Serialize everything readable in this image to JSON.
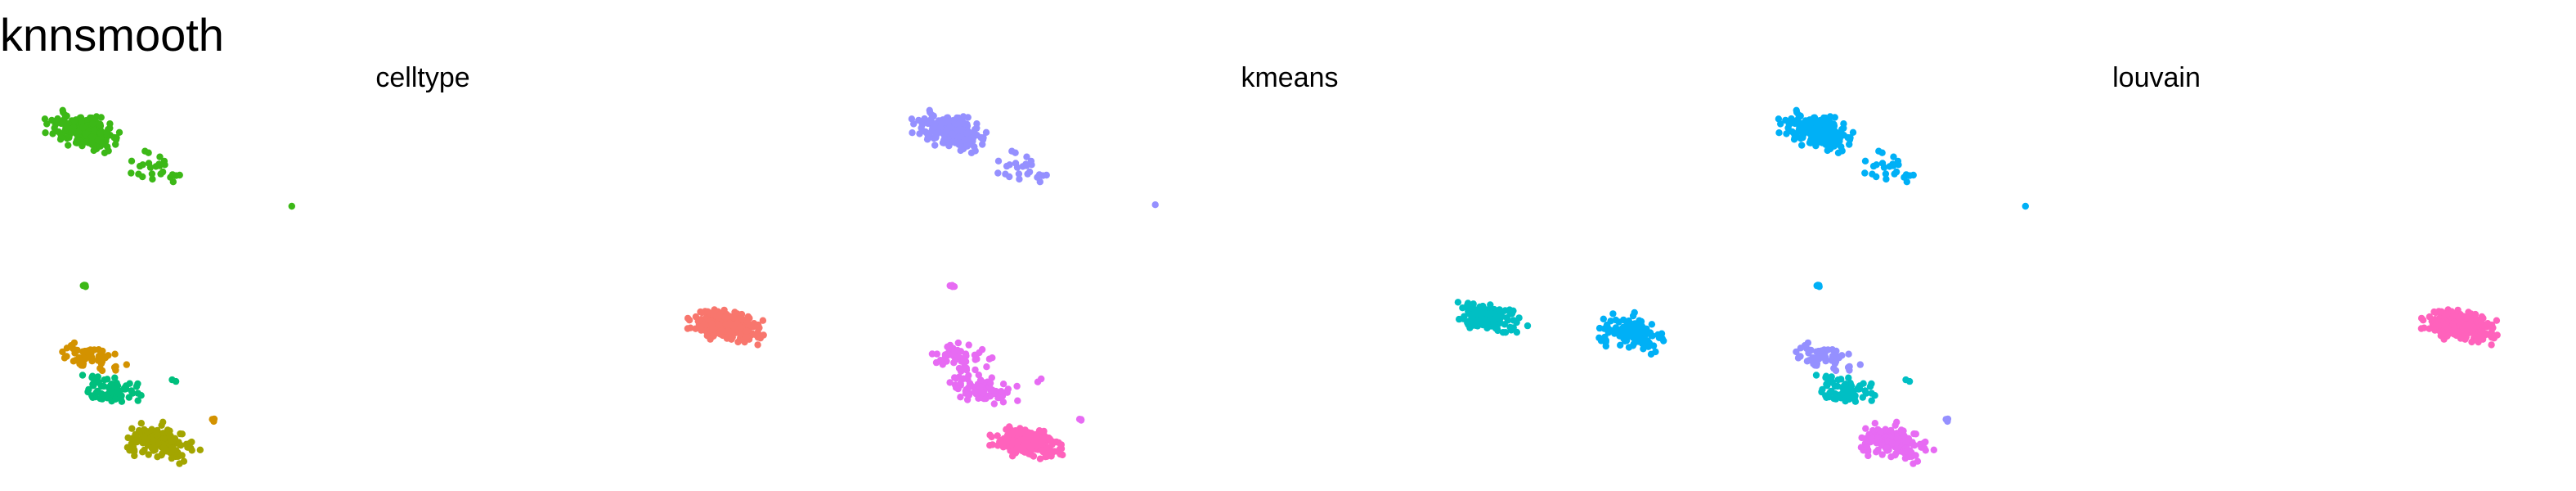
{
  "title": "knnsmooth",
  "chart_data": [
    {
      "type": "scatter",
      "title": "celltype",
      "xlabel": "",
      "ylabel": "",
      "axes": "none",
      "grid": false,
      "legend": "none",
      "clusters": [
        {
          "color": "#3CB817",
          "points": [
            [
              -6.2,
              8.5,
              210
            ],
            [
              -4.5,
              7.5,
              25
            ],
            [
              -6.2,
              4.3,
              4
            ],
            [
              -1.1,
              6.5,
              1
            ]
          ]
        },
        {
          "color": "#F8766D",
          "points": [
            [
              9.8,
              3.2,
              280
            ]
          ]
        },
        {
          "color": "#D39200",
          "points": [
            [
              -6.0,
              2.3,
              55
            ],
            [
              -3.0,
              0.6,
              3
            ]
          ]
        },
        {
          "color": "#00BF7D",
          "points": [
            [
              -5.5,
              1.4,
              75
            ],
            [
              -4.0,
              1.7,
              2
            ]
          ]
        },
        {
          "color": "#A3A500",
          "points": [
            [
              -4.3,
              0.0,
              170
            ]
          ]
        }
      ]
    },
    {
      "type": "scatter",
      "title": "kmeans",
      "xlabel": "",
      "ylabel": "",
      "axes": "none",
      "grid": false,
      "legend": "none",
      "clusters": [
        {
          "color": "#9590FF",
          "points": [
            [
              -6.2,
              8.5,
              210
            ],
            [
              -4.5,
              7.5,
              25
            ],
            [
              -1.1,
              6.5,
              1
            ]
          ]
        },
        {
          "color": "#E76BF3",
          "points": [
            [
              -6.2,
              4.3,
              4
            ],
            [
              -6.0,
              2.3,
              55
            ],
            [
              -5.5,
              1.4,
              75
            ],
            [
              -3.0,
              0.6,
              3
            ],
            [
              -4.0,
              1.7,
              2
            ]
          ]
        },
        {
          "color": "#FF62BC",
          "points": [
            [
              -4.3,
              0.0,
              170
            ]
          ]
        },
        {
          "color": "#00BFC4",
          "points": [
            [
              7.2,
              3.4,
              140
            ]
          ]
        },
        {
          "color": "#00B0F6",
          "points": [
            [
              10.8,
              3.0,
              140
            ]
          ]
        }
      ]
    },
    {
      "type": "scatter",
      "title": "louvain",
      "xlabel": "",
      "ylabel": "",
      "axes": "none",
      "grid": false,
      "legend": "none",
      "clusters": [
        {
          "color": "#00B0F6",
          "points": [
            [
              -6.2,
              8.5,
              210
            ],
            [
              -4.5,
              7.5,
              25
            ],
            [
              -6.2,
              4.3,
              4
            ],
            [
              -1.1,
              6.5,
              1
            ]
          ]
        },
        {
          "color": "#FF62BC",
          "points": [
            [
              9.8,
              3.2,
              280
            ]
          ]
        },
        {
          "color": "#9590FF",
          "points": [
            [
              -6.0,
              2.3,
              55
            ],
            [
              -3.0,
              0.6,
              3
            ]
          ]
        },
        {
          "color": "#00BFC4",
          "points": [
            [
              -5.5,
              1.4,
              75
            ],
            [
              -4.0,
              1.7,
              2
            ]
          ]
        },
        {
          "color": "#E76BF3",
          "points": [
            [
              -4.3,
              0.0,
              170
            ]
          ]
        }
      ]
    }
  ]
}
